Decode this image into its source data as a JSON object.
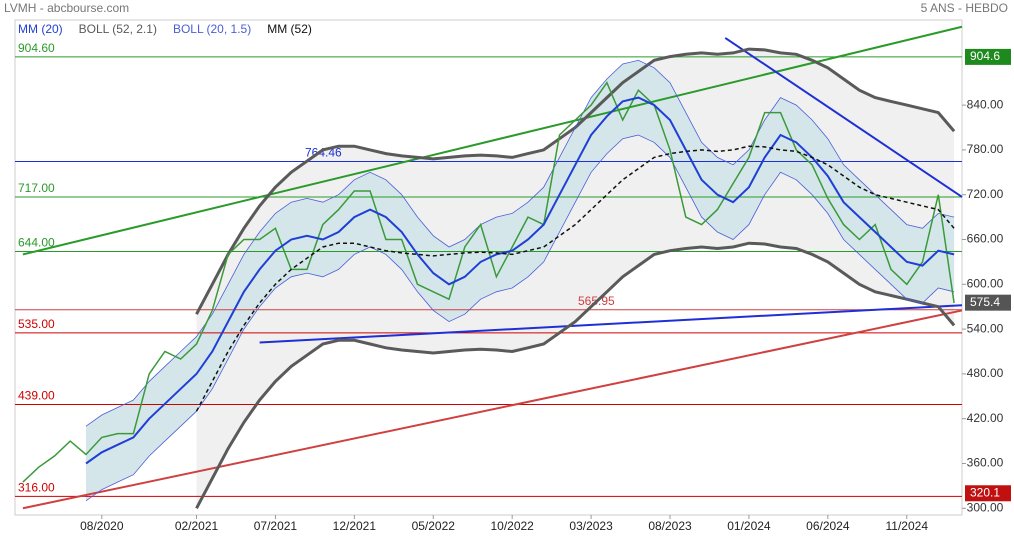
{
  "chart_data": {
    "type": "line",
    "title": "LVMH - abcbourse.com",
    "subtitle": "5 ANS - HEBDO",
    "categories": [
      null,
      null,
      null,
      null,
      null,
      "08/2020",
      null,
      null,
      null,
      null,
      null,
      "02/2021",
      null,
      null,
      null,
      null,
      "07/2021",
      null,
      null,
      null,
      null,
      "12/2021",
      null,
      null,
      null,
      null,
      "05/2022",
      null,
      null,
      null,
      null,
      "10/2022",
      null,
      null,
      null,
      null,
      "03/2023",
      null,
      null,
      null,
      null,
      "08/2023",
      null,
      null,
      null,
      null,
      "01/2024",
      null,
      null,
      null,
      null,
      "06/2024",
      null,
      null,
      null,
      null,
      "11/2024",
      null,
      null,
      null
    ],
    "close": {
      "color": "#3a9a3a",
      "values": [
        335,
        355,
        370,
        390,
        372,
        395,
        400,
        400,
        480,
        510,
        500,
        520,
        565,
        640,
        660,
        660,
        675,
        620,
        620,
        680,
        700,
        725,
        725,
        660,
        660,
        600,
        590,
        580,
        650,
        680,
        610,
        650,
        690,
        680,
        800,
        820,
        840,
        870,
        820,
        860,
        840,
        780,
        690,
        680,
        700,
        735,
        770,
        830,
        830,
        780,
        760,
        715,
        680,
        660,
        680,
        620,
        600,
        630,
        720,
        575
      ]
    },
    "series": [
      {
        "name": "MM (20)",
        "color": "#1f3fd6",
        "values": [
          null,
          null,
          null,
          null,
          360,
          375,
          385,
          395,
          420,
          440,
          460,
          480,
          510,
          550,
          590,
          620,
          645,
          660,
          665,
          660,
          670,
          690,
          700,
          690,
          670,
          640,
          615,
          600,
          610,
          630,
          640,
          645,
          660,
          680,
          720,
          760,
          800,
          825,
          845,
          850,
          840,
          820,
          780,
          740,
          720,
          710,
          730,
          770,
          800,
          790,
          770,
          745,
          710,
          690,
          670,
          650,
          630,
          625,
          645,
          640
        ]
      },
      {
        "name": "BOLL (52, 2.1)",
        "color": "#5a5a5a",
        "upper": [
          null,
          null,
          null,
          null,
          null,
          null,
          null,
          null,
          null,
          null,
          null,
          560,
          600,
          640,
          675,
          705,
          730,
          750,
          765,
          780,
          785,
          785,
          780,
          775,
          772,
          770,
          768,
          770,
          772,
          773,
          772,
          770,
          775,
          780,
          795,
          810,
          830,
          850,
          870,
          885,
          900,
          905,
          908,
          910,
          908,
          910,
          915,
          914,
          910,
          908,
          900,
          890,
          875,
          860,
          850,
          845,
          840,
          835,
          830,
          805
        ],
        "lower": [
          null,
          null,
          null,
          null,
          null,
          null,
          null,
          null,
          null,
          null,
          null,
          300,
          340,
          380,
          415,
          445,
          470,
          490,
          505,
          520,
          525,
          525,
          520,
          515,
          512,
          510,
          508,
          510,
          512,
          513,
          512,
          510,
          515,
          520,
          535,
          550,
          570,
          590,
          610,
          625,
          640,
          645,
          648,
          650,
          648,
          650,
          655,
          654,
          650,
          648,
          640,
          630,
          615,
          600,
          590,
          585,
          580,
          575,
          570,
          545
        ]
      },
      {
        "name": "BOLL (20, 1.5)",
        "color": "#4a5fd6",
        "upper": [
          null,
          null,
          null,
          null,
          410,
          425,
          435,
          445,
          470,
          490,
          510,
          530,
          560,
          600,
          640,
          670,
          695,
          710,
          715,
          710,
          720,
          740,
          750,
          740,
          720,
          690,
          665,
          650,
          660,
          680,
          690,
          695,
          710,
          730,
          770,
          810,
          850,
          875,
          895,
          900,
          890,
          870,
          830,
          790,
          770,
          760,
          780,
          820,
          850,
          840,
          820,
          795,
          760,
          740,
          720,
          700,
          680,
          675,
          695,
          690
        ],
        "lower": [
          null,
          null,
          null,
          null,
          310,
          325,
          335,
          345,
          370,
          390,
          410,
          430,
          460,
          500,
          540,
          570,
          595,
          610,
          615,
          610,
          620,
          640,
          650,
          640,
          620,
          590,
          565,
          550,
          560,
          580,
          590,
          595,
          610,
          630,
          670,
          710,
          750,
          775,
          795,
          800,
          790,
          770,
          730,
          690,
          670,
          660,
          680,
          720,
          750,
          740,
          720,
          695,
          660,
          640,
          620,
          600,
          580,
          575,
          595,
          590
        ]
      },
      {
        "name": "MM (52)",
        "color": "#111111",
        "dashed": true,
        "values": [
          null,
          null,
          null,
          null,
          null,
          null,
          null,
          null,
          null,
          null,
          null,
          430,
          470,
          510,
          545,
          575,
          600,
          620,
          635,
          650,
          655,
          655,
          650,
          645,
          642,
          640,
          638,
          640,
          642,
          643,
          642,
          640,
          645,
          650,
          665,
          680,
          700,
          720,
          740,
          755,
          770,
          775,
          778,
          780,
          778,
          780,
          785,
          784,
          780,
          778,
          770,
          760,
          745,
          730,
          720,
          715,
          710,
          705,
          700,
          675
        ]
      }
    ],
    "levels": [
      {
        "value": 904.6,
        "label": "904.60",
        "color": "#2a9a2a"
      },
      {
        "value": 764.46,
        "label": "764.46",
        "color": "#1f2fd6"
      },
      {
        "value": 717,
        "label": "717.00",
        "color": "#2a9a2a"
      },
      {
        "value": 644,
        "label": "644.00",
        "color": "#2a9a2a"
      },
      {
        "value": 565.95,
        "label": "565.95",
        "color": "#d04040"
      },
      {
        "value": 535,
        "label": "535.00",
        "color": "#d00000"
      },
      {
        "value": 439,
        "label": "439.00",
        "color": "#d00000"
      },
      {
        "value": 316,
        "label": "316.00",
        "color": "#d00000"
      }
    ],
    "tags": [
      {
        "value": 904.6,
        "label": "904.6",
        "color": "#1e8a1e"
      },
      {
        "value": 575.4,
        "label": "575.4",
        "color": "#555555"
      },
      {
        "value": 320.1,
        "label": "320.1",
        "color": "#c01010"
      }
    ],
    "trendlines": [
      {
        "color": "#2a9a2a",
        "x": [
          0,
          59.5
        ],
        "values": [
          640,
          945
        ]
      },
      {
        "color": "#1f2fd6",
        "x": [
          44.5,
          59.5
        ],
        "values": [
          930,
          717
        ]
      },
      {
        "color": "#1f2fd6",
        "x": [
          15,
          59.5
        ],
        "values": [
          522,
          572
        ]
      },
      {
        "color": "#d04040",
        "x": [
          0,
          59.5
        ],
        "values": [
          300,
          565
        ]
      }
    ],
    "ylim": [
      291,
      954
    ],
    "yticks": [
      {
        "value": 300,
        "label": "300.00"
      },
      {
        "value": 360,
        "label": "360.00"
      },
      {
        "value": 420,
        "label": "420.00"
      },
      {
        "value": 480,
        "label": "480.00"
      },
      {
        "value": 540,
        "label": "540.00"
      },
      {
        "value": 600,
        "label": "600.00"
      },
      {
        "value": 660,
        "label": "660.00"
      },
      {
        "value": 720,
        "label": "720.00"
      },
      {
        "value": 780,
        "label": "780.00"
      },
      {
        "value": 840,
        "label": "840.00"
      }
    ],
    "grid": false
  }
}
